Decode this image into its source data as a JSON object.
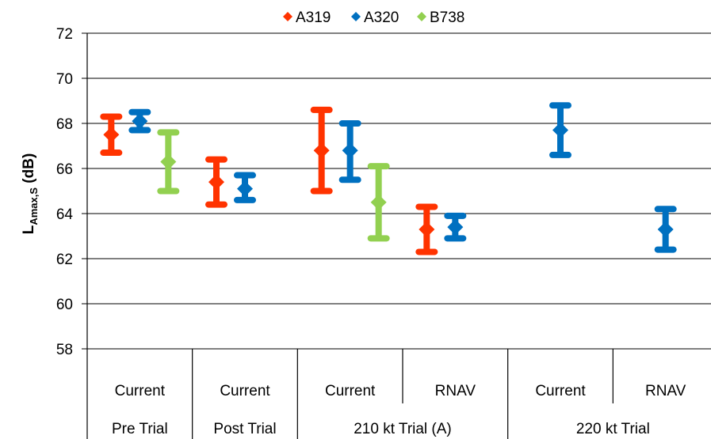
{
  "chart_data": {
    "type": "scatter",
    "variant": "error-bar-range",
    "title": "",
    "xlabel": "",
    "ylabel": {
      "main": "L",
      "sub": "Amax,S",
      "suffix": " (dB)"
    },
    "ylim": [
      58,
      72
    ],
    "yticks": [
      58,
      60,
      62,
      64,
      66,
      68,
      70,
      72
    ],
    "grid": true,
    "legend_position": "top-center",
    "categories": [
      {
        "group": "Pre Trial",
        "label": "Current"
      },
      {
        "group": "Post Trial",
        "label": "Current"
      },
      {
        "group": "210 kt Trial (A)",
        "label": "Current"
      },
      {
        "group": "210 kt Trial (A)",
        "label": "RNAV"
      },
      {
        "group": "220 kt Trial",
        "label": "Current"
      },
      {
        "group": "220 kt Trial",
        "label": "RNAV"
      }
    ],
    "groups": [
      "Pre Trial",
      "Post Trial",
      "210 kt Trial (A)",
      "220 kt Trial"
    ],
    "series": [
      {
        "name": "A319",
        "color": "#ff3300",
        "mean": [
          67.5,
          65.4,
          66.8,
          63.3,
          null,
          null
        ],
        "low": [
          66.7,
          64.4,
          65.0,
          62.3,
          null,
          null
        ],
        "high": [
          68.3,
          66.4,
          68.6,
          64.3,
          null,
          null
        ]
      },
      {
        "name": "A320",
        "color": "#0070c0",
        "mean": [
          68.1,
          65.1,
          66.8,
          63.4,
          67.7,
          63.3
        ],
        "low": [
          67.7,
          64.6,
          65.5,
          62.9,
          66.6,
          62.4
        ],
        "high": [
          68.5,
          65.7,
          68.0,
          63.9,
          68.8,
          64.2
        ]
      },
      {
        "name": "B738",
        "color": "#92d050",
        "mean": [
          66.3,
          null,
          64.5,
          null,
          null,
          null
        ],
        "low": [
          65.0,
          null,
          62.9,
          null,
          null,
          null
        ],
        "high": [
          67.6,
          null,
          66.1,
          null,
          null,
          null
        ]
      }
    ]
  }
}
